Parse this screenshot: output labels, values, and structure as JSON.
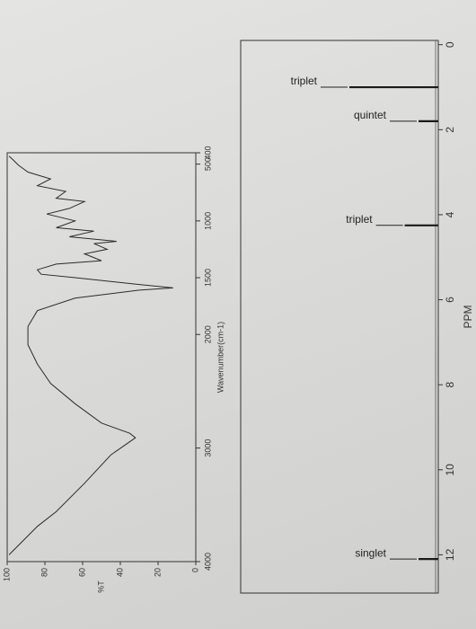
{
  "chart_data": [
    {
      "type": "line",
      "xlabel": "Wavenumber(cm-1)",
      "ylabel": "%T",
      "x": [
        3940,
        3690,
        3560,
        3310,
        3060,
        2910,
        2870,
        2780,
        2610,
        2430,
        2260,
        2090,
        1930,
        1790,
        1680,
        1610,
        1590,
        1560,
        1500,
        1470,
        1430,
        1380,
        1350,
        1290,
        1250,
        1200,
        1180,
        1140,
        1090,
        1060,
        1000,
        940,
        890,
        830,
        800,
        740,
        690,
        630,
        570,
        510,
        460,
        430
      ],
      "values": [
        99,
        84,
        74,
        59,
        45,
        32,
        35,
        50,
        64,
        77,
        84,
        89,
        89,
        84,
        64,
        30,
        12,
        30,
        64,
        82,
        84,
        74,
        50,
        59,
        47,
        54,
        42,
        67,
        54,
        74,
        64,
        79,
        67,
        59,
        74,
        69,
        84,
        77,
        89,
        94,
        97,
        99
      ],
      "xlim": [
        4000,
        400
      ],
      "xticks": [
        4000,
        3000,
        2000,
        1500,
        1000,
        500,
        400
      ],
      "ylim": [
        0,
        100
      ],
      "yticks": [
        0,
        20,
        40,
        60,
        80,
        100
      ],
      "color": "#2b2b2b"
    },
    {
      "type": "stick",
      "xlabel": "PPM",
      "x": [
        1.0,
        1.8,
        4.25,
        12.1
      ],
      "values": [
        45,
        10,
        17,
        10
      ],
      "annotations": [
        "triplet",
        "quintet",
        "triplet",
        "singlet"
      ],
      "xlim": [
        12.9,
        -0.1
      ],
      "xticks": [
        0,
        2,
        4,
        6,
        8,
        10,
        12
      ],
      "ylim": [
        0,
        100
      ],
      "color": "#1a1a1a"
    }
  ]
}
